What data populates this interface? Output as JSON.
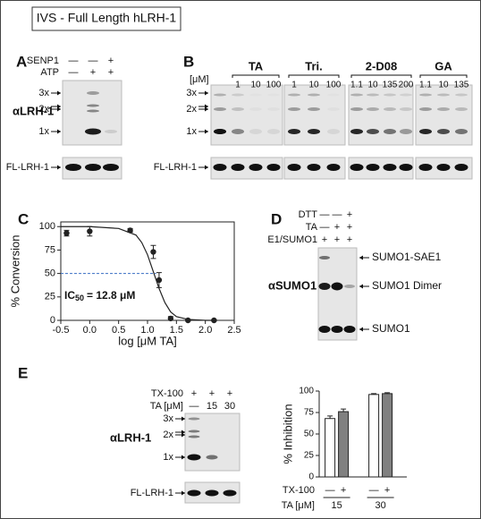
{
  "title": "IVS - Full Length hLRH-1",
  "panel_a": {
    "label": "A",
    "rows": [
      {
        "name": "SENP1",
        "signs": [
          "—",
          "—",
          "+"
        ]
      },
      {
        "name": "ATP",
        "signs": [
          "—",
          "+",
          "+"
        ]
      }
    ],
    "antibody": "αLRH-1",
    "bands": [
      "3x",
      "2x",
      "1x",
      "FL-LRH-1"
    ]
  },
  "panel_b": {
    "label": "B",
    "unit": "[μM]",
    "control": "—",
    "groups": [
      {
        "name": "TA",
        "doses": [
          "1",
          "10",
          "100"
        ]
      },
      {
        "name": "Tri.",
        "doses": [
          "1",
          "10",
          "100"
        ]
      },
      {
        "name": "2-D08",
        "doses": [
          "1.1",
          "10",
          "135",
          "200"
        ]
      },
      {
        "name": "GA",
        "doses": [
          "1.1",
          "10",
          "135"
        ]
      }
    ],
    "bands": [
      "3x",
      "2x",
      "1x",
      "FL-LRH-1"
    ]
  },
  "panel_c": {
    "label": "C"
  },
  "panel_d": {
    "label": "D",
    "rows": [
      {
        "name": "DTT",
        "signs": [
          "—",
          "—",
          "+"
        ]
      },
      {
        "name": "TA",
        "signs": [
          "—",
          "+",
          "+"
        ]
      },
      {
        "name": "E1/SUMO1",
        "signs": [
          "+",
          "+",
          "+"
        ]
      }
    ],
    "antibody": "αSUMO1",
    "bands": [
      "SUMO1-SAE1",
      "SUMO1 Dimer",
      "SUMO1"
    ]
  },
  "panel_e": {
    "label": "E",
    "rows": [
      {
        "name": "TX-100",
        "signs": [
          "+",
          "+",
          "+"
        ]
      },
      {
        "name": "TA [μM]",
        "signs": [
          "—",
          "15",
          "30"
        ]
      }
    ],
    "antibody": "αLRH-1",
    "bands": [
      "3x",
      "2x",
      "1x",
      "FL-LRH-1"
    ]
  },
  "chart_data": [
    {
      "type": "scatter",
      "xlabel": "log [μM TA]",
      "ylabel": "% Conversion",
      "annotation": {
        "main": "IC",
        "sub": "50",
        "rest": "= 12.8 μM"
      },
      "x": [
        -0.4,
        0.0,
        0.7,
        1.1,
        1.2,
        1.4,
        1.7,
        2.15
      ],
      "values": [
        93,
        95,
        96,
        73,
        43,
        2,
        0,
        0
      ],
      "errors": [
        3,
        5,
        2,
        7,
        8,
        2,
        1,
        1
      ],
      "fit_x": [
        -0.5,
        0,
        0.5,
        0.8,
        0.9,
        1.0,
        1.1,
        1.2,
        1.3,
        1.4,
        1.5,
        1.7,
        2.0,
        2.2
      ],
      "fit_values": [
        100,
        100,
        98,
        91,
        83,
        70,
        52,
        34,
        19,
        9,
        4,
        1,
        0,
        0
      ],
      "reference_y": 50,
      "reference_color": "#3a6fc4",
      "color": "#222222",
      "xlim": [
        -0.5,
        2.5
      ],
      "ylim": [
        0,
        105
      ],
      "xticks": [
        -0.5,
        {
          "value": 0,
          "label": "0.0"
        },
        0.5,
        {
          "value": 1,
          "label": "1.0"
        },
        1.5,
        {
          "value": 2,
          "label": "2.0"
        },
        2.5
      ],
      "yticks": [
        0,
        25,
        50,
        75,
        100
      ]
    },
    {
      "type": "bar",
      "ylabel": "% Inhibition",
      "series_label": "TX-100",
      "category_label": "TA [μM]",
      "categories": [
        "15",
        "30"
      ],
      "series": [
        {
          "name": "—",
          "color": "#ffffff",
          "values": [
            68,
            96
          ],
          "errors": [
            3,
            1
          ]
        },
        {
          "name": "+",
          "color": "#808080",
          "values": [
            76,
            97
          ],
          "errors": [
            3,
            1
          ]
        }
      ],
      "ylim": [
        0,
        100
      ],
      "yticks": [
        0,
        25,
        50,
        75,
        100
      ]
    }
  ]
}
